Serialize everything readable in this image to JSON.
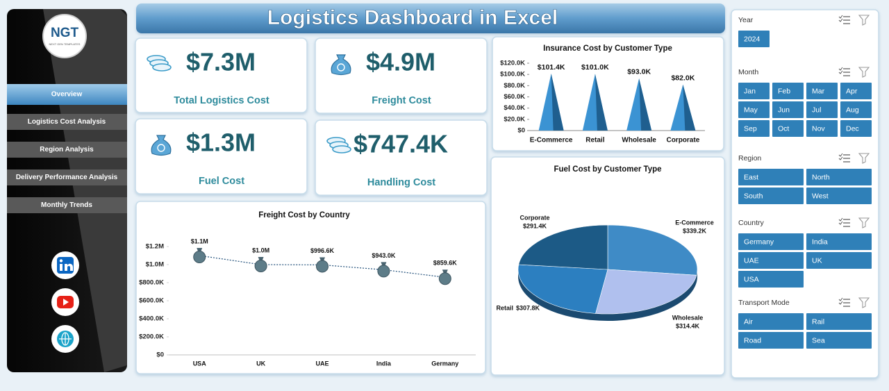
{
  "header": {
    "title": "Logistics Dashboard in Excel"
  },
  "sidebar": {
    "logo": "NGT",
    "logo_tagline": "NEXT GEN TEMPLATES",
    "nav": [
      "Overview",
      "Logistics Cost Analysis",
      "Region Analysis",
      "Delivery Performance Analysis",
      "Monthly Trends"
    ]
  },
  "kpis": [
    {
      "value": "$7.3M",
      "label": "Total Logistics Cost"
    },
    {
      "value": "$4.9M",
      "label": "Freight Cost"
    },
    {
      "value": "$1.3M",
      "label": "Fuel Cost"
    },
    {
      "value": "$747.4K",
      "label": "Handling Cost"
    }
  ],
  "chart_data": [
    {
      "type": "bar",
      "title": "Insurance Cost by Customer Type",
      "categories": [
        "E-Commerce",
        "Retail",
        "Wholesale",
        "Corporate"
      ],
      "values": [
        101400,
        101000,
        93000,
        82000
      ],
      "value_labels": [
        "$101.4K",
        "$101.0K",
        "$93.0K",
        "$82.0K"
      ],
      "color": "#3b93d3",
      "ylim": [
        0,
        120000
      ],
      "yticks": [
        {
          "value": 0,
          "label": "$0"
        },
        {
          "value": 20000,
          "label": "$20.0K"
        },
        {
          "value": 40000,
          "label": "$40.0K"
        },
        {
          "value": 60000,
          "label": "$60.0K"
        },
        {
          "value": 80000,
          "label": "$80.0K"
        },
        {
          "value": 100000,
          "label": "$100.0K"
        },
        {
          "value": 120000,
          "label": "$120.0K"
        }
      ]
    },
    {
      "type": "pie",
      "title": "Fuel Cost by Customer Type",
      "categories": [
        "E-Commerce",
        "Wholesale",
        "Retail",
        "Corporate"
      ],
      "values": [
        339200,
        314400,
        307800,
        291400
      ],
      "value_labels": [
        "$339.2K",
        "$314.4K",
        "$307.8K",
        "$291.4K"
      ],
      "colors": [
        "#3f8bc6",
        "#b0c0ee",
        "#2c7fc0",
        "#1c5a86"
      ]
    },
    {
      "type": "line",
      "title": "Freight Cost by Country",
      "categories": [
        "USA",
        "UK",
        "UAE",
        "India",
        "Germany"
      ],
      "values": [
        1100000,
        1000000,
        996600,
        943000,
        859600
      ],
      "value_labels": [
        "$1.1M",
        "$1.0M",
        "$996.6K",
        "$943.0K",
        "$859.6K"
      ],
      "color": "#1f4e79",
      "ylim": [
        0,
        1200000
      ],
      "yticks": [
        {
          "value": 0,
          "label": "$0"
        },
        {
          "value": 200000,
          "label": "$200.0K"
        },
        {
          "value": 400000,
          "label": "$400.0K"
        },
        {
          "value": 600000,
          "label": "$600.0K"
        },
        {
          "value": 800000,
          "label": "$800.0K"
        },
        {
          "value": 1000000,
          "label": "$1.0M"
        },
        {
          "value": 1200000,
          "label": "$1.2M"
        }
      ]
    }
  ],
  "slicers": [
    {
      "title": "Year",
      "items": [
        "2024"
      ]
    },
    {
      "title": "Month",
      "items": [
        "Jan",
        "Feb",
        "Mar",
        "Apr",
        "May",
        "Jun",
        "Jul",
        "Aug",
        "Sep",
        "Oct",
        "Nov",
        "Dec"
      ]
    },
    {
      "title": "Region",
      "items": [
        "East",
        "North",
        "South",
        "West"
      ]
    },
    {
      "title": "Country",
      "items": [
        "Germany",
        "India",
        "UAE",
        "UK",
        "USA"
      ]
    },
    {
      "title": "Transport Mode",
      "items": [
        "Air",
        "Rail",
        "Road",
        "Sea"
      ]
    }
  ]
}
